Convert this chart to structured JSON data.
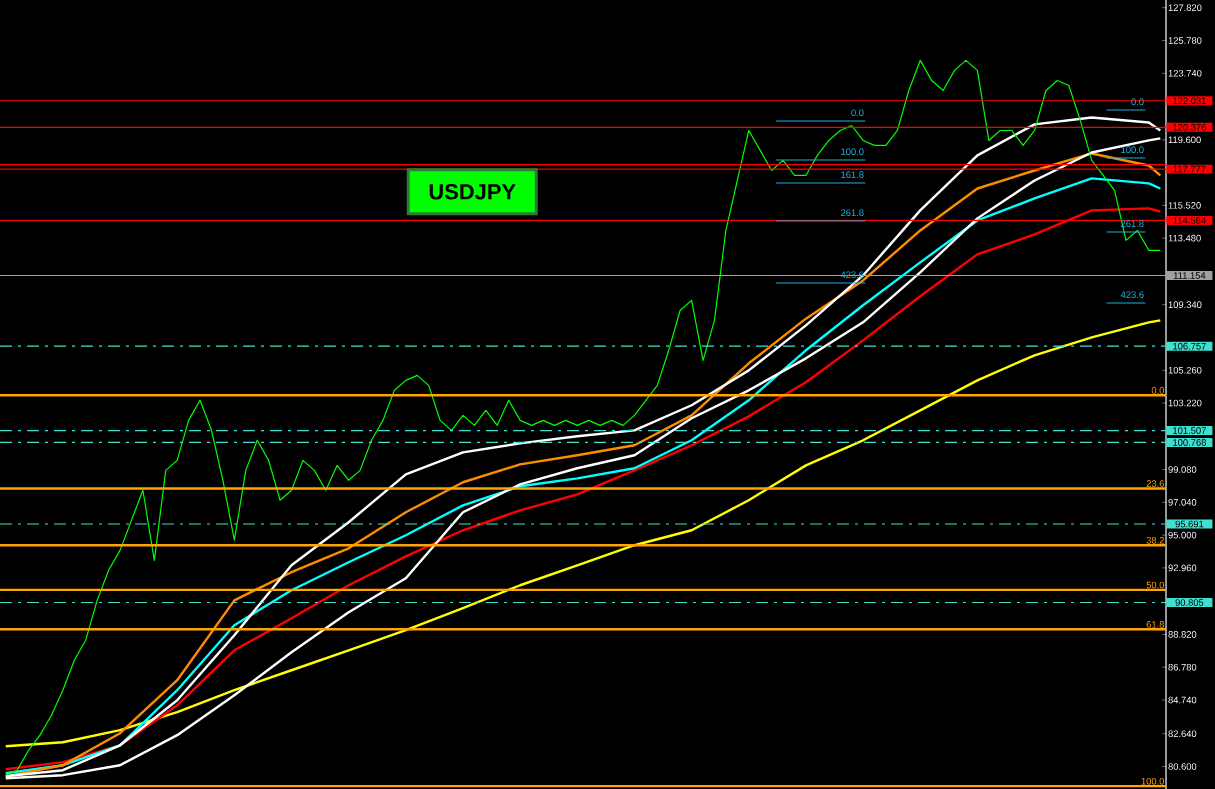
{
  "chart_data": {
    "type": "line",
    "title": "USDJPY",
    "categories": [
      null,
      null,
      null,
      null,
      null,
      null,
      null,
      null,
      null,
      null,
      null,
      null,
      null,
      null,
      null,
      null,
      null,
      null,
      null,
      null,
      null,
      null,
      null,
      null,
      null,
      null,
      null,
      null,
      null,
      null,
      null,
      null,
      null,
      null,
      null,
      null,
      null,
      null,
      null,
      null,
      null,
      null,
      null,
      null,
      null,
      null,
      null,
      null,
      null,
      null,
      null,
      null,
      null,
      null,
      null,
      null,
      null,
      null,
      null,
      null,
      null,
      null,
      null,
      null,
      null,
      null,
      null,
      null,
      null,
      null,
      null,
      null,
      null,
      null,
      null,
      null,
      null,
      null,
      null,
      null,
      null,
      null,
      null,
      null,
      null,
      null,
      null,
      null,
      null,
      null,
      null,
      null,
      null,
      null,
      null,
      null,
      null,
      null,
      null,
      null,
      null,
      null
    ],
    "series": [
      {
        "color": "#ffff00",
        "values": [
          81.86,
          null,
          null,
          null,
          null,
          82.11,
          null,
          null,
          null,
          null,
          82.86,
          null,
          null,
          null,
          null,
          83.98,
          null,
          null,
          null,
          null,
          85.35,
          null,
          null,
          null,
          null,
          86.59,
          null,
          null,
          null,
          null,
          87.83,
          null,
          null,
          null,
          null,
          89.08,
          null,
          null,
          null,
          null,
          90.45,
          null,
          null,
          null,
          null,
          91.88,
          null,
          null,
          null,
          null,
          93.12,
          null,
          null,
          null,
          null,
          94.37,
          null,
          null,
          null,
          null,
          95.3,
          null,
          null,
          null,
          null,
          97.17,
          null,
          null,
          null,
          null,
          99.34,
          null,
          null,
          null,
          null,
          100.9,
          null,
          null,
          null,
          null,
          102.76,
          null,
          null,
          null,
          null,
          104.63,
          null,
          null,
          null,
          null,
          106.19,
          null,
          null,
          null,
          null,
          107.31,
          null,
          null,
          null,
          null,
          108.24,
          108.36
        ]
      },
      {
        "color": "#ff0000",
        "values": [
          80.43,
          null,
          null,
          null,
          null,
          80.87,
          null,
          null,
          null,
          null,
          81.92,
          null,
          null,
          null,
          null,
          84.41,
          null,
          null,
          null,
          null,
          87.83,
          null,
          null,
          null,
          null,
          89.83,
          null,
          null,
          null,
          null,
          91.88,
          null,
          null,
          null,
          null,
          93.68,
          null,
          null,
          null,
          null,
          95.3,
          null,
          null,
          null,
          null,
          96.54,
          null,
          null,
          null,
          null,
          97.54,
          null,
          null,
          null,
          null,
          99.03,
          null,
          null,
          null,
          null,
          100.59,
          null,
          null,
          null,
          null,
          102.39,
          null,
          null,
          null,
          null,
          104.51,
          null,
          null,
          null,
          null,
          107.12,
          null,
          null,
          null,
          null,
          109.86,
          null,
          null,
          null,
          null,
          112.47,
          null,
          null,
          null,
          null,
          113.71,
          null,
          null,
          null,
          null,
          115.21,
          null,
          null,
          null,
          null,
          115.33,
          115.14
        ]
      },
      {
        "color": "#00ffff",
        "values": [
          80.18,
          null,
          null,
          null,
          null,
          80.68,
          null,
          null,
          null,
          null,
          81.92,
          null,
          null,
          null,
          null,
          85.35,
          null,
          null,
          null,
          null,
          89.39,
          null,
          null,
          null,
          null,
          91.57,
          null,
          null,
          null,
          null,
          93.31,
          null,
          null,
          null,
          null,
          94.99,
          null,
          null,
          null,
          null,
          96.85,
          null,
          null,
          null,
          null,
          98.04,
          null,
          null,
          null,
          null,
          98.53,
          null,
          null,
          null,
          null,
          99.16,
          null,
          null,
          null,
          null,
          100.9,
          null,
          null,
          null,
          null,
          103.39,
          null,
          null,
          null,
          null,
          106.5,
          null,
          null,
          null,
          null,
          109.3,
          null,
          null,
          null,
          null,
          111.97,
          null,
          null,
          null,
          null,
          114.58,
          null,
          null,
          null,
          null,
          115.95,
          null,
          null,
          null,
          null,
          117.2,
          null,
          null,
          null,
          null,
          116.89,
          116.57
        ]
      },
      {
        "color": "#ff8c00",
        "values": [
          79.99,
          null,
          null,
          null,
          null,
          80.68,
          null,
          null,
          null,
          null,
          82.67,
          null,
          null,
          null,
          null,
          85.97,
          null,
          null,
          null,
          null,
          90.94,
          null,
          null,
          null,
          null,
          92.69,
          null,
          null,
          null,
          null,
          94.18,
          null,
          null,
          null,
          null,
          96.42,
          null,
          null,
          null,
          null,
          98.29,
          null,
          null,
          null,
          null,
          99.4,
          null,
          null,
          null,
          null,
          99.97,
          null,
          null,
          null,
          null,
          100.59,
          null,
          null,
          null,
          null,
          102.45,
          null,
          null,
          null,
          null,
          105.69,
          null,
          null,
          null,
          null,
          108.47,
          null,
          null,
          null,
          null,
          110.85,
          null,
          null,
          null,
          null,
          113.96,
          null,
          null,
          null,
          null,
          116.57,
          null,
          null,
          null,
          null,
          117.69,
          null,
          null,
          null,
          null,
          118.75,
          null,
          null,
          null,
          null,
          118.0,
          117.38
        ]
      },
      {
        "color": "#ffffff",
        "values": [
          79.99,
          null,
          null,
          null,
          null,
          80.37,
          null,
          null,
          null,
          null,
          81.92,
          null,
          null,
          null,
          null,
          84.72,
          null,
          null,
          null,
          null,
          88.77,
          null,
          null,
          null,
          null,
          93.12,
          null,
          null,
          null,
          null,
          95.8,
          null,
          null,
          null,
          null,
          98.78,
          null,
          null,
          null,
          null,
          100.15,
          null,
          null,
          null,
          null,
          100.71,
          null,
          null,
          null,
          null,
          101.15,
          null,
          null,
          null,
          null,
          101.52,
          null,
          null,
          null,
          null,
          103.08,
          null,
          null,
          null,
          null,
          105.25,
          null,
          null,
          null,
          null,
          108.05,
          null,
          null,
          null,
          null,
          111.16,
          null,
          null,
          null,
          null,
          115.21,
          null,
          null,
          null,
          null,
          118.63,
          null,
          null,
          null,
          null,
          120.56,
          null,
          null,
          null,
          null,
          120.99,
          null,
          null,
          null,
          null,
          120.68,
          120.18
        ]
      },
      {
        "color": "#ffffff",
        "values": [
          79.87,
          null,
          null,
          null,
          null,
          80.06,
          null,
          null,
          null,
          null,
          80.68,
          null,
          null,
          null,
          null,
          82.55,
          null,
          null,
          null,
          null,
          85.03,
          null,
          null,
          null,
          null,
          87.71,
          null,
          null,
          null,
          null,
          90.2,
          null,
          null,
          null,
          null,
          92.31,
          null,
          null,
          null,
          null,
          96.42,
          null,
          null,
          null,
          null,
          98.16,
          null,
          null,
          null,
          null,
          99.16,
          null,
          null,
          null,
          null,
          99.97,
          null,
          null,
          null,
          null,
          102.27,
          null,
          null,
          null,
          null,
          104.01,
          null,
          null,
          null,
          null,
          106.0,
          null,
          null,
          null,
          null,
          108.24,
          null,
          null,
          null,
          null,
          111.35,
          null,
          null,
          null,
          null,
          114.71,
          null,
          null,
          null,
          null,
          117.07,
          null,
          null,
          null,
          null,
          118.81,
          null,
          null,
          null,
          null,
          119.56,
          119.69
        ]
      },
      {
        "color": "#00ff00",
        "values": [
          80.06,
          80.37,
          81.61,
          82.55,
          83.79,
          85.35,
          87.21,
          88.46,
          90.94,
          92.81,
          94.05,
          95.92,
          97.79,
          93.43,
          99.03,
          99.65,
          102.14,
          103.39,
          101.52,
          98.41,
          94.68,
          99.03,
          100.9,
          99.65,
          97.17,
          97.79,
          99.65,
          99.03,
          97.79,
          99.34,
          98.41,
          99.03,
          100.9,
          102.14,
          104.01,
          104.63,
          104.94,
          104.32,
          102.14,
          101.52,
          102.45,
          101.83,
          102.76,
          101.83,
          103.39,
          102.14,
          101.83,
          102.14,
          101.83,
          102.14,
          101.83,
          102.14,
          101.83,
          102.14,
          101.83,
          102.45,
          103.39,
          104.32,
          106.5,
          108.99,
          109.61,
          105.87,
          108.36,
          113.96,
          117.07,
          120.18,
          118.94,
          117.69,
          118.32,
          117.38,
          117.38,
          118.63,
          119.56,
          120.18,
          120.49,
          119.56,
          119.25,
          119.25,
          120.18,
          122.67,
          124.54,
          123.29,
          122.67,
          123.92,
          124.54,
          123.92,
          119.56,
          120.18,
          120.18,
          119.25,
          120.18,
          122.67,
          123.29,
          122.98,
          120.81,
          118.32,
          117.38,
          116.45,
          113.34,
          113.96,
          112.72,
          112.72
        ]
      }
    ],
    "ylim": [
      79.2,
      128.3
    ],
    "yticks": [
      {
        "value": 127.82,
        "label": "127.820"
      },
      {
        "value": 125.78,
        "label": "125.780"
      },
      {
        "value": 123.74,
        "label": "123.740"
      },
      {
        "value": 119.6,
        "label": "119.600"
      },
      {
        "value": 115.52,
        "label": "115.520"
      },
      {
        "value": 113.48,
        "label": "113.480"
      },
      {
        "value": 109.34,
        "label": "109.340"
      },
      {
        "value": 105.26,
        "label": "105.260"
      },
      {
        "value": 103.22,
        "label": "103.220"
      },
      {
        "value": 99.08,
        "label": "99.080"
      },
      {
        "value": 97.04,
        "label": "97.040"
      },
      {
        "value": 95.0,
        "label": "95.000"
      },
      {
        "value": 92.96,
        "label": "92.960"
      },
      {
        "value": 88.82,
        "label": "88.820"
      },
      {
        "value": 86.78,
        "label": "86.780"
      },
      {
        "value": 84.74,
        "label": "84.740"
      },
      {
        "value": 82.64,
        "label": "82.640"
      },
      {
        "value": 80.6,
        "label": "80.600"
      }
    ],
    "ref_lines": [
      {
        "axis": "y",
        "value": 122.031,
        "label": "122.031",
        "color": "#ff0000"
      },
      {
        "axis": "y",
        "value": 120.376,
        "label": "120.376",
        "color": "#ff0000"
      },
      {
        "axis": "y",
        "value": 118.05,
        "color": "#ff0000"
      },
      {
        "axis": "y",
        "value": 117.777,
        "label": "117.777",
        "color": "#ff0000"
      },
      {
        "axis": "y",
        "value": 114.584,
        "label": "114.584",
        "color": "#ff0000"
      },
      {
        "axis": "y",
        "value": 111.154,
        "label": "111.154",
        "color": "#a0a0a0"
      },
      {
        "axis": "y",
        "value": 106.757,
        "label": "106.757",
        "color": "#40e0d0",
        "line_style": "dashed"
      },
      {
        "axis": "y",
        "value": 101.507,
        "label": "101.507",
        "color": "#40e0d0",
        "line_style": "dashed"
      },
      {
        "axis": "y",
        "value": 100.768,
        "label": "100.768",
        "color": "#40e0d0",
        "line_style": "dashed"
      },
      {
        "axis": "y",
        "value": 95.691,
        "label": "95.691",
        "color": "#40e0d0",
        "line_style": "dashed"
      },
      {
        "axis": "y",
        "value": 90.805,
        "label": "90.805",
        "color": "#40e0d0",
        "line_style": "dashed"
      },
      {
        "axis": "y",
        "value": 103.7,
        "color": "#ffa500"
      },
      {
        "axis": "y",
        "value": 97.9,
        "color": "#ffa500"
      },
      {
        "axis": "y",
        "value": 94.37,
        "color": "#ffa500"
      },
      {
        "axis": "y",
        "value": 91.59,
        "color": "#ffa500"
      },
      {
        "axis": "y",
        "value": 89.14,
        "color": "#ffa500"
      },
      {
        "axis": "y",
        "value": 79.38,
        "color": "#ffa500"
      }
    ],
    "annotations": [
      "0.0",
      "100.0",
      "161.8",
      "261.8",
      "423.6",
      "0.0",
      "100.0",
      "261.8",
      "423.6",
      {
        "text": "0.0",
        "y": 103.7
      },
      {
        "text": "23.6",
        "y": 97.9
      },
      {
        "text": "38.2",
        "y": 94.37
      },
      {
        "text": "50.0",
        "y": 91.59
      },
      {
        "text": "61.8",
        "y": 89.14
      },
      {
        "text": "100.0",
        "y": 79.38
      }
    ],
    "grid": false
  }
}
